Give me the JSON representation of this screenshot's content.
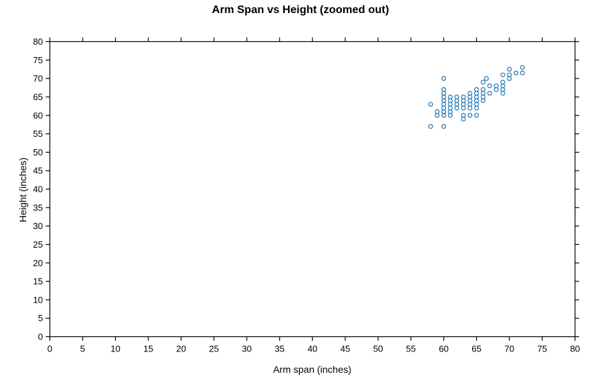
{
  "chart_data": {
    "type": "scatter",
    "title": "Arm Span vs Height (zoomed out)",
    "xlabel": "Arm span (inches)",
    "ylabel": "Height (inches)",
    "xlim": [
      0,
      80
    ],
    "ylim": [
      0,
      80
    ],
    "xticks": [
      0,
      5,
      10,
      15,
      20,
      25,
      30,
      35,
      40,
      45,
      50,
      55,
      60,
      65,
      70,
      75,
      80
    ],
    "yticks": [
      0,
      5,
      10,
      15,
      20,
      25,
      30,
      35,
      40,
      45,
      50,
      55,
      60,
      65,
      70,
      75,
      80
    ],
    "grid": false,
    "legend_position": "none",
    "frame": "box-with-outward-ticks",
    "marker": {
      "shape": "open-circle",
      "color": "#1f77b4",
      "radius_px": 2.85,
      "stroke_px": 1.2
    },
    "axis_color": "#000000",
    "background_color": "#ffffff",
    "points": [
      [
        58,
        63
      ],
      [
        58,
        57
      ],
      [
        59,
        61
      ],
      [
        59,
        60
      ],
      [
        60,
        57
      ],
      [
        60,
        70
      ],
      [
        60,
        67
      ],
      [
        60,
        66
      ],
      [
        60,
        65
      ],
      [
        60,
        64
      ],
      [
        60,
        63
      ],
      [
        60,
        62
      ],
      [
        60,
        61
      ],
      [
        60,
        61
      ],
      [
        60,
        60
      ],
      [
        61,
        65
      ],
      [
        61,
        64
      ],
      [
        61,
        63
      ],
      [
        61,
        62
      ],
      [
        61,
        61
      ],
      [
        61,
        60
      ],
      [
        62,
        65
      ],
      [
        62,
        64
      ],
      [
        62,
        63
      ],
      [
        62,
        62
      ],
      [
        63,
        65
      ],
      [
        63,
        64
      ],
      [
        63,
        63
      ],
      [
        63,
        62
      ],
      [
        63,
        60
      ],
      [
        63,
        59
      ],
      [
        64,
        66
      ],
      [
        64,
        65
      ],
      [
        64,
        64
      ],
      [
        64,
        63
      ],
      [
        64,
        62
      ],
      [
        64,
        60
      ],
      [
        65,
        67
      ],
      [
        65,
        66
      ],
      [
        65,
        65
      ],
      [
        65,
        64
      ],
      [
        65,
        63
      ],
      [
        65,
        62
      ],
      [
        65,
        60
      ],
      [
        66,
        69
      ],
      [
        66,
        67
      ],
      [
        66,
        66
      ],
      [
        66,
        65
      ],
      [
        66,
        64
      ],
      [
        66.5,
        70
      ],
      [
        67,
        68
      ],
      [
        67,
        66
      ],
      [
        68,
        68
      ],
      [
        68,
        67
      ],
      [
        69,
        69
      ],
      [
        69,
        68
      ],
      [
        69,
        67
      ],
      [
        69,
        66
      ],
      [
        69,
        71
      ],
      [
        70,
        70
      ],
      [
        70,
        72.5
      ],
      [
        70,
        71
      ],
      [
        71,
        71.5
      ],
      [
        72,
        73
      ],
      [
        72,
        71.5
      ]
    ]
  }
}
